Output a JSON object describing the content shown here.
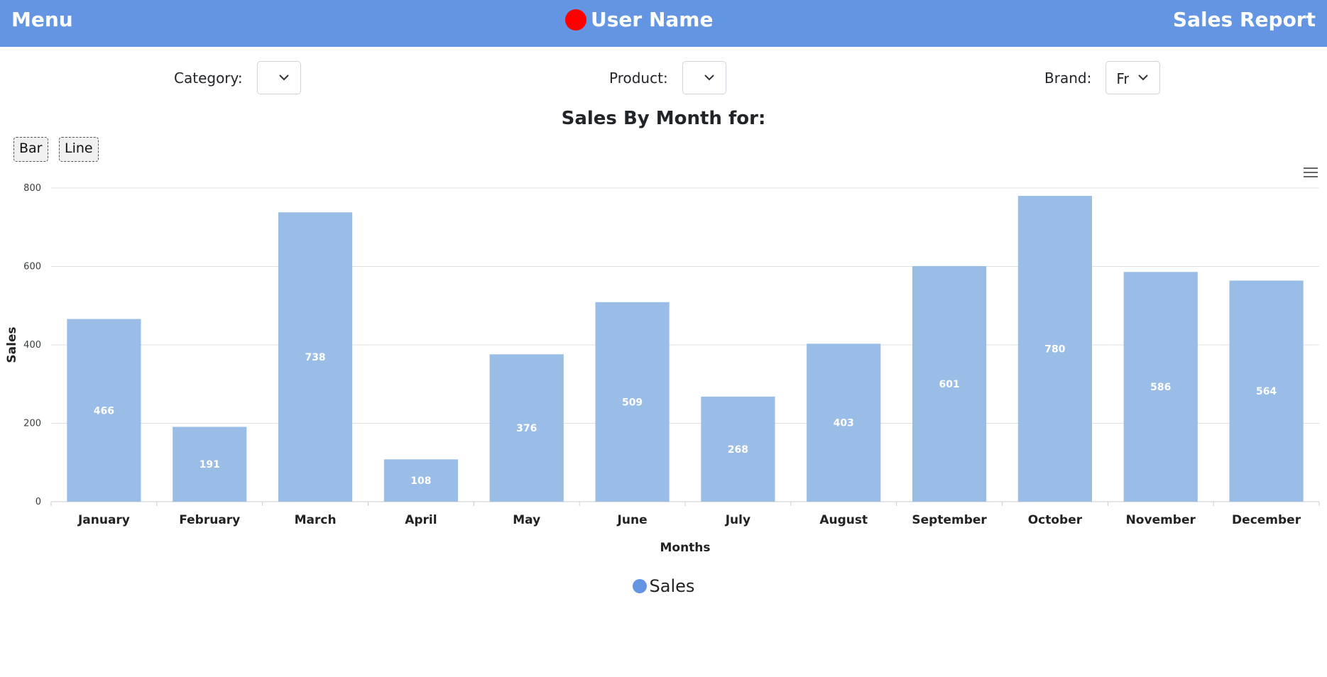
{
  "header": {
    "menu_label": "Menu",
    "user_name": "User Name",
    "report_label": "Sales Report"
  },
  "filters": {
    "category_label": "Category:",
    "category_value": "",
    "product_label": "Product:",
    "product_value": "",
    "brand_label": "Brand:",
    "brand_value": "Fr"
  },
  "chart_title": "Sales By Month for:",
  "chart_toggle": {
    "bar_label": "Bar",
    "line_label": "Line"
  },
  "colors": {
    "accent": "#6495e2",
    "bar": "#99bde6",
    "user_dot": "#ff0000"
  },
  "icons": {
    "menu": "hamburger-icon",
    "dropdown": "chevron-down-icon",
    "user_status": "status-dot-icon"
  },
  "chart_data": {
    "type": "bar",
    "categories": [
      "January",
      "February",
      "March",
      "April",
      "May",
      "June",
      "July",
      "August",
      "September",
      "October",
      "November",
      "December"
    ],
    "values": [
      466,
      191,
      738,
      108,
      376,
      509,
      268,
      403,
      601,
      780,
      586,
      564
    ],
    "title": "Sales By Month for:",
    "xlabel": "Months",
    "ylabel": "Sales",
    "ylim": [
      0,
      800
    ],
    "yticks": [
      0,
      200,
      400,
      600,
      800
    ],
    "grid": true,
    "data_labels": true,
    "legend": {
      "position": "bottom-center",
      "entries": [
        "Sales"
      ]
    },
    "series": [
      {
        "name": "Sales",
        "values": [
          466,
          191,
          738,
          108,
          376,
          509,
          268,
          403,
          601,
          780,
          586,
          564
        ]
      }
    ]
  }
}
